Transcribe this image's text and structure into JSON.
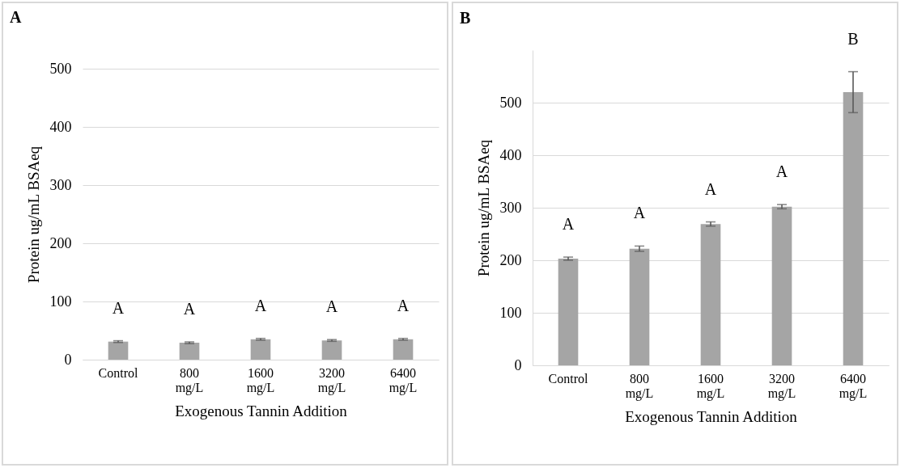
{
  "chart_data": [
    {
      "type": "bar",
      "title": "A",
      "xlabel": "Exogenous Tannin Addition",
      "ylabel": "Protein ug/mL BSAeq",
      "categories": [
        "Control",
        "800 mg/L",
        "1600 mg/L",
        "3200 mg/L",
        "6400 mg/L"
      ],
      "values": [
        31,
        29,
        35,
        33,
        35
      ],
      "errors": [
        1.5,
        1.5,
        1.5,
        1.5,
        1.5
      ],
      "color": "#a5a5a5",
      "ylim": [
        0,
        500
      ],
      "yticks": [
        0,
        100,
        200,
        300,
        400,
        500
      ],
      "grid": "y",
      "annotations": [
        "A",
        "A",
        "A",
        "A",
        "A"
      ]
    },
    {
      "type": "bar",
      "title": "B",
      "xlabel": "Exogenous Tannin Addition",
      "ylabel": "Protein ug/mL BSAeq",
      "categories": [
        "Control",
        "800 mg/L",
        "1600 mg/L",
        "3200 mg/L",
        "6400 mg/L"
      ],
      "values": [
        203,
        222,
        269,
        302,
        520
      ],
      "errors": [
        3,
        5,
        4,
        4,
        39
      ],
      "color": "#a5a5a5",
      "ylim": [
        0,
        600
      ],
      "yticks": [
        0,
        100,
        200,
        300,
        400,
        500
      ],
      "grid": "y",
      "annotations": [
        "A",
        "A",
        "A",
        "A",
        "B"
      ]
    }
  ]
}
